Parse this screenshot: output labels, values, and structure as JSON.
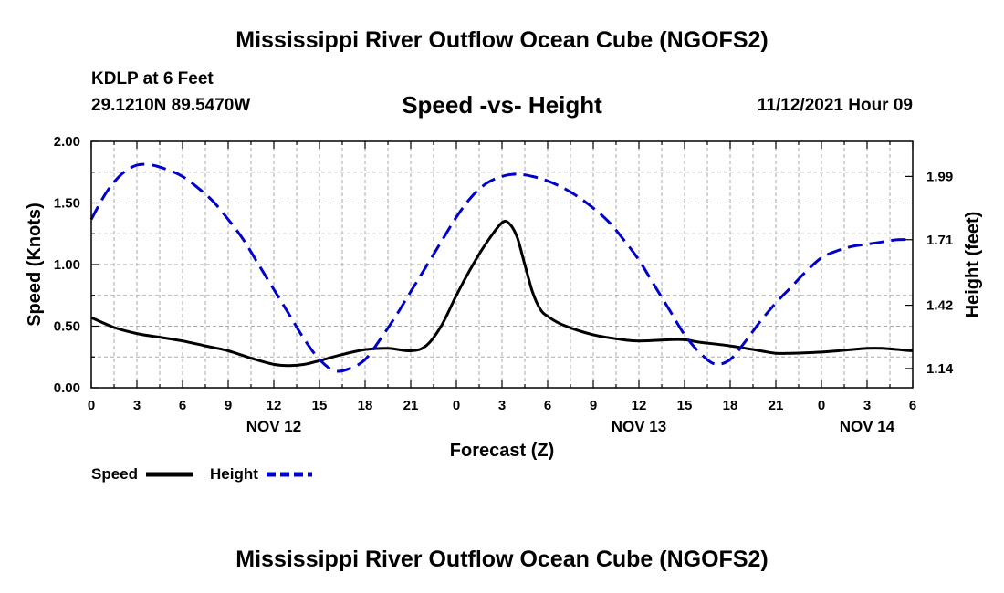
{
  "header": {
    "title": "Mississippi River Outflow Ocean Cube (NGOFS2)",
    "station": "KDLP at 6 Feet",
    "coordinates": "29.1210N  89.5470W",
    "subtitle": "Speed -vs- Height",
    "datetime": "11/12/2021 Hour 09"
  },
  "footer": {
    "title": "Mississippi River Outflow Ocean Cube (NGOFS2)"
  },
  "colors": {
    "speed": "#000000",
    "height": "#0000cc",
    "grid": "#aaaaaa"
  },
  "chart_data": {
    "type": "line",
    "title": "Speed -vs- Height",
    "xlabel": "Forecast (Z)",
    "ylabel": "Speed (Knots)",
    "y2label": "Height (feet)",
    "grid": true,
    "legend_position": "bottom-left",
    "xlim": [
      0,
      54
    ],
    "ylim": [
      0,
      2.0
    ],
    "y2lim": [
      1.055,
      2.145
    ],
    "x_ticks": [
      {
        "x": 0,
        "label": "0"
      },
      {
        "x": 3,
        "label": "3"
      },
      {
        "x": 6,
        "label": "6"
      },
      {
        "x": 9,
        "label": "9"
      },
      {
        "x": 12,
        "label": "12"
      },
      {
        "x": 15,
        "label": "15"
      },
      {
        "x": 18,
        "label": "18"
      },
      {
        "x": 21,
        "label": "21"
      },
      {
        "x": 24,
        "label": "0"
      },
      {
        "x": 27,
        "label": "3"
      },
      {
        "x": 30,
        "label": "6"
      },
      {
        "x": 33,
        "label": "9"
      },
      {
        "x": 36,
        "label": "12"
      },
      {
        "x": 39,
        "label": "15"
      },
      {
        "x": 42,
        "label": "18"
      },
      {
        "x": 45,
        "label": "21"
      },
      {
        "x": 48,
        "label": "0"
      },
      {
        "x": 51,
        "label": "3"
      },
      {
        "x": 54,
        "label": "6"
      }
    ],
    "date_labels": [
      {
        "x": 12,
        "label": "NOV 12"
      },
      {
        "x": 36,
        "label": "NOV 13"
      },
      {
        "x": 51,
        "label": "NOV 14"
      }
    ],
    "y_ticks": [
      {
        "v": 0,
        "label": "0.00"
      },
      {
        "v": 0.5,
        "label": "0.50"
      },
      {
        "v": 1.0,
        "label": "1.00"
      },
      {
        "v": 1.5,
        "label": "1.50"
      },
      {
        "v": 2.0,
        "label": "2.00"
      }
    ],
    "y2_ticks": [
      {
        "v": 1.14,
        "label": "1.14"
      },
      {
        "v": 1.42,
        "label": "1.42"
      },
      {
        "v": 1.71,
        "label": "1.71"
      },
      {
        "v": 1.99,
        "label": "1.99"
      }
    ],
    "series": [
      {
        "name": "Speed",
        "axis": "left",
        "style": "solid",
        "color": "#000000",
        "x": [
          0,
          1.5,
          3,
          4.5,
          6,
          7.5,
          9,
          10.5,
          12,
          13,
          14,
          15,
          16.5,
          18,
          19.5,
          21,
          22,
          23,
          24,
          25,
          26,
          27,
          27.5,
          28,
          28.5,
          29,
          29.5,
          30,
          31,
          33,
          35,
          36,
          38,
          39,
          40,
          42,
          44,
          45,
          46,
          48,
          50,
          51,
          52,
          54
        ],
        "values": [
          0.57,
          0.49,
          0.44,
          0.41,
          0.38,
          0.34,
          0.3,
          0.24,
          0.19,
          0.18,
          0.19,
          0.22,
          0.27,
          0.31,
          0.32,
          0.3,
          0.34,
          0.5,
          0.75,
          0.98,
          1.18,
          1.34,
          1.33,
          1.22,
          1.0,
          0.78,
          0.64,
          0.58,
          0.51,
          0.43,
          0.39,
          0.38,
          0.39,
          0.39,
          0.37,
          0.34,
          0.3,
          0.28,
          0.28,
          0.29,
          0.31,
          0.32,
          0.32,
          0.3
        ]
      },
      {
        "name": "Height",
        "axis": "right",
        "style": "dashed",
        "color": "#0000cc",
        "x": [
          0,
          1,
          2,
          3,
          4,
          5,
          6,
          7,
          8,
          9,
          10,
          11,
          12,
          13,
          14,
          15,
          16,
          17,
          18,
          19,
          20,
          21,
          22,
          23,
          24,
          25,
          26,
          27,
          28,
          29,
          30,
          31,
          32,
          33,
          34,
          35,
          36,
          37,
          38,
          39,
          40,
          41,
          42,
          43,
          44,
          45,
          46,
          47,
          48,
          49,
          50,
          51,
          52,
          53,
          54
        ],
        "values": [
          1.8,
          1.92,
          2.0,
          2.04,
          2.04,
          2.02,
          1.99,
          1.94,
          1.88,
          1.8,
          1.71,
          1.6,
          1.49,
          1.38,
          1.27,
          1.18,
          1.13,
          1.14,
          1.18,
          1.27,
          1.37,
          1.48,
          1.59,
          1.7,
          1.81,
          1.9,
          1.96,
          1.99,
          2.0,
          1.99,
          1.97,
          1.94,
          1.9,
          1.85,
          1.79,
          1.71,
          1.62,
          1.51,
          1.4,
          1.29,
          1.21,
          1.16,
          1.18,
          1.26,
          1.35,
          1.43,
          1.5,
          1.57,
          1.63,
          1.66,
          1.68,
          1.69,
          1.7,
          1.71,
          1.71
        ]
      }
    ]
  }
}
